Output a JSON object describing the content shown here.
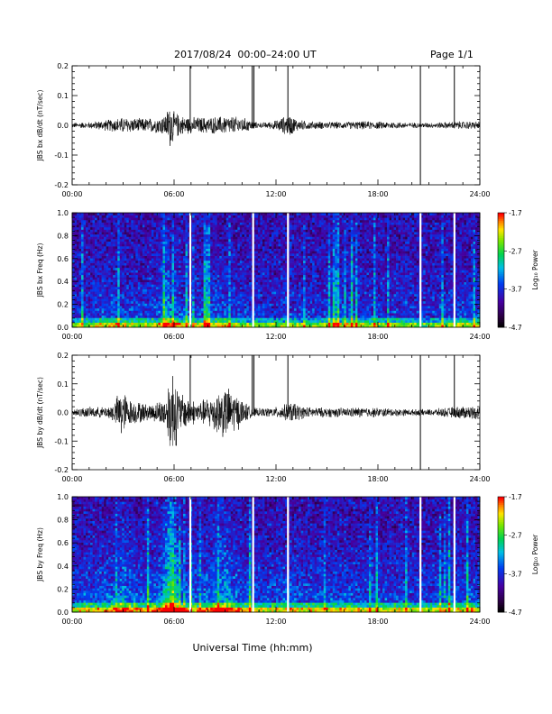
{
  "header": {
    "title": "2017/08/24  00:00–24:00 UT",
    "page": "Page 1/1"
  },
  "chart_data": [
    {
      "type": "line",
      "ylabel": "JBS bx dB/dt (nT/sec)",
      "ylim": [
        -0.2,
        0.2
      ],
      "yticks": [
        "-0.2",
        "-0.1",
        "0.0",
        "0.1",
        "0.2"
      ],
      "xlim": [
        0,
        24
      ],
      "xticks": [
        "00:00",
        "06:00",
        "12:00",
        "18:00",
        "24:00"
      ],
      "envelope": {
        "hours": [
          0,
          1,
          2,
          3,
          4,
          5,
          5.5,
          5.8,
          6,
          6.5,
          7,
          8,
          9,
          10,
          10.8,
          11,
          11.5,
          12,
          12.4,
          12.8,
          13.3,
          14,
          15,
          16,
          17,
          18,
          19,
          20,
          21,
          22,
          23,
          24
        ],
        "amplitude": [
          0.01,
          0.012,
          0.02,
          0.03,
          0.025,
          0.028,
          0.04,
          0.09,
          0.05,
          0.035,
          0.03,
          0.03,
          0.035,
          0.03,
          0.012,
          0.01,
          0.012,
          0.018,
          0.03,
          0.04,
          0.02,
          0.015,
          0.013,
          0.013,
          0.015,
          0.014,
          0.013,
          0.01,
          0.01,
          0.012,
          0.015,
          0.015
        ]
      },
      "spikes": [
        {
          "hour": 6.95,
          "min": -0.01,
          "max": 0.2
        },
        {
          "hour": 10.6,
          "min": -0.01,
          "max": 0.2
        },
        {
          "hour": 10.7,
          "min": -0.01,
          "max": 0.2
        },
        {
          "hour": 12.7,
          "min": -0.01,
          "max": 0.2
        },
        {
          "hour": 20.5,
          "min": -0.2,
          "max": 0.2
        },
        {
          "hour": 22.5,
          "min": -0.01,
          "max": 0.2
        }
      ]
    },
    {
      "type": "heatmap",
      "ylabel": "JBS bx Freq (Hz)",
      "ylim": [
        0,
        1
      ],
      "yticks": [
        "0.0",
        "0.2",
        "0.4",
        "0.6",
        "0.8",
        "1.0"
      ],
      "xlim": [
        0,
        24
      ],
      "xticks": [
        "00:00",
        "06:00",
        "12:00",
        "18:00",
        "24:00"
      ],
      "colorbar": {
        "label": "Log₁₀ Power",
        "min": -4.7,
        "max": -1.7,
        "ticks": [
          "-1.7",
          "-2.7",
          "-3.7",
          "-4.7"
        ]
      },
      "gaps": [
        6.95,
        10.65,
        12.7,
        20.5,
        22.5
      ],
      "activity": {
        "hours": [
          0,
          1,
          2,
          2.5,
          3,
          4,
          5,
          5.5,
          6,
          6.5,
          7,
          8,
          8.5,
          9,
          10,
          11,
          12,
          12.5,
          13,
          14,
          15,
          16,
          17,
          18,
          19,
          20,
          21,
          22,
          23,
          24
        ],
        "level": [
          0.35,
          0.4,
          0.5,
          0.55,
          0.45,
          0.45,
          0.5,
          0.8,
          0.7,
          0.5,
          0.4,
          0.5,
          0.6,
          0.55,
          0.4,
          0.4,
          0.35,
          0.45,
          0.4,
          0.35,
          0.45,
          0.5,
          0.45,
          0.4,
          0.4,
          0.35,
          0.35,
          0.4,
          0.45,
          0.45
        ]
      }
    },
    {
      "type": "line",
      "ylabel": "JBS by dB/dt (nT/sec)",
      "ylim": [
        -0.2,
        0.2
      ],
      "yticks": [
        "-0.2",
        "-0.1",
        "0.0",
        "0.1",
        "0.2"
      ],
      "xlim": [
        0,
        24
      ],
      "xticks": [
        "00:00",
        "06:00",
        "12:00",
        "18:00",
        "24:00"
      ],
      "envelope": {
        "hours": [
          0,
          1,
          2,
          2.5,
          2.9,
          3.3,
          4,
          4.5,
          5,
          5.5,
          5.9,
          6.3,
          7,
          7.5,
          8,
          8.5,
          9,
          9.5,
          10,
          10.5,
          11,
          12,
          12.5,
          13,
          13.5,
          14,
          15,
          16,
          17,
          18,
          19,
          20,
          21,
          22,
          23,
          24
        ],
        "amplitude": [
          0.015,
          0.02,
          0.02,
          0.04,
          0.1,
          0.05,
          0.04,
          0.03,
          0.04,
          0.06,
          0.19,
          0.08,
          0.05,
          0.04,
          0.06,
          0.08,
          0.1,
          0.08,
          0.05,
          0.02,
          0.015,
          0.02,
          0.03,
          0.04,
          0.025,
          0.02,
          0.018,
          0.018,
          0.02,
          0.018,
          0.015,
          0.012,
          0.012,
          0.018,
          0.025,
          0.025
        ]
      },
      "spikes": [
        {
          "hour": 6.95,
          "min": -0.01,
          "max": 0.2
        },
        {
          "hour": 10.6,
          "min": -0.01,
          "max": 0.2
        },
        {
          "hour": 10.7,
          "min": -0.01,
          "max": 0.2
        },
        {
          "hour": 12.7,
          "min": -0.01,
          "max": 0.2
        },
        {
          "hour": 20.5,
          "min": -0.2,
          "max": 0.2
        },
        {
          "hour": 22.5,
          "min": -0.01,
          "max": 0.2
        }
      ]
    },
    {
      "type": "heatmap",
      "ylabel": "JBS by Freq (Hz)",
      "ylim": [
        0,
        1
      ],
      "yticks": [
        "0.0",
        "0.2",
        "0.4",
        "0.6",
        "0.8",
        "1.0"
      ],
      "xlim": [
        0,
        24
      ],
      "xticks": [
        "00:00",
        "06:00",
        "12:00",
        "18:00",
        "24:00"
      ],
      "xlabel": "Universal Time (hh:mm)",
      "colorbar": {
        "label": "Log₁₀ Power",
        "min": -4.7,
        "max": -1.7,
        "ticks": [
          "-1.7",
          "-2.7",
          "-3.7",
          "-4.7"
        ]
      },
      "gaps": [
        6.95,
        10.65,
        12.7,
        20.5,
        22.5
      ],
      "activity": {
        "hours": [
          0,
          1,
          2,
          2.5,
          3,
          3.5,
          4,
          5,
          5.5,
          5.9,
          6.3,
          7,
          8,
          8.5,
          9,
          9.5,
          10,
          11,
          12,
          12.5,
          13,
          14,
          15,
          16,
          17,
          18,
          19,
          20,
          21,
          22,
          23,
          24
        ],
        "level": [
          0.5,
          0.55,
          0.6,
          0.7,
          0.8,
          0.7,
          0.6,
          0.65,
          0.85,
          1.0,
          0.75,
          0.6,
          0.7,
          0.8,
          0.8,
          0.75,
          0.6,
          0.5,
          0.5,
          0.6,
          0.55,
          0.5,
          0.55,
          0.55,
          0.5,
          0.5,
          0.5,
          0.45,
          0.45,
          0.5,
          0.55,
          0.55
        ]
      }
    }
  ]
}
